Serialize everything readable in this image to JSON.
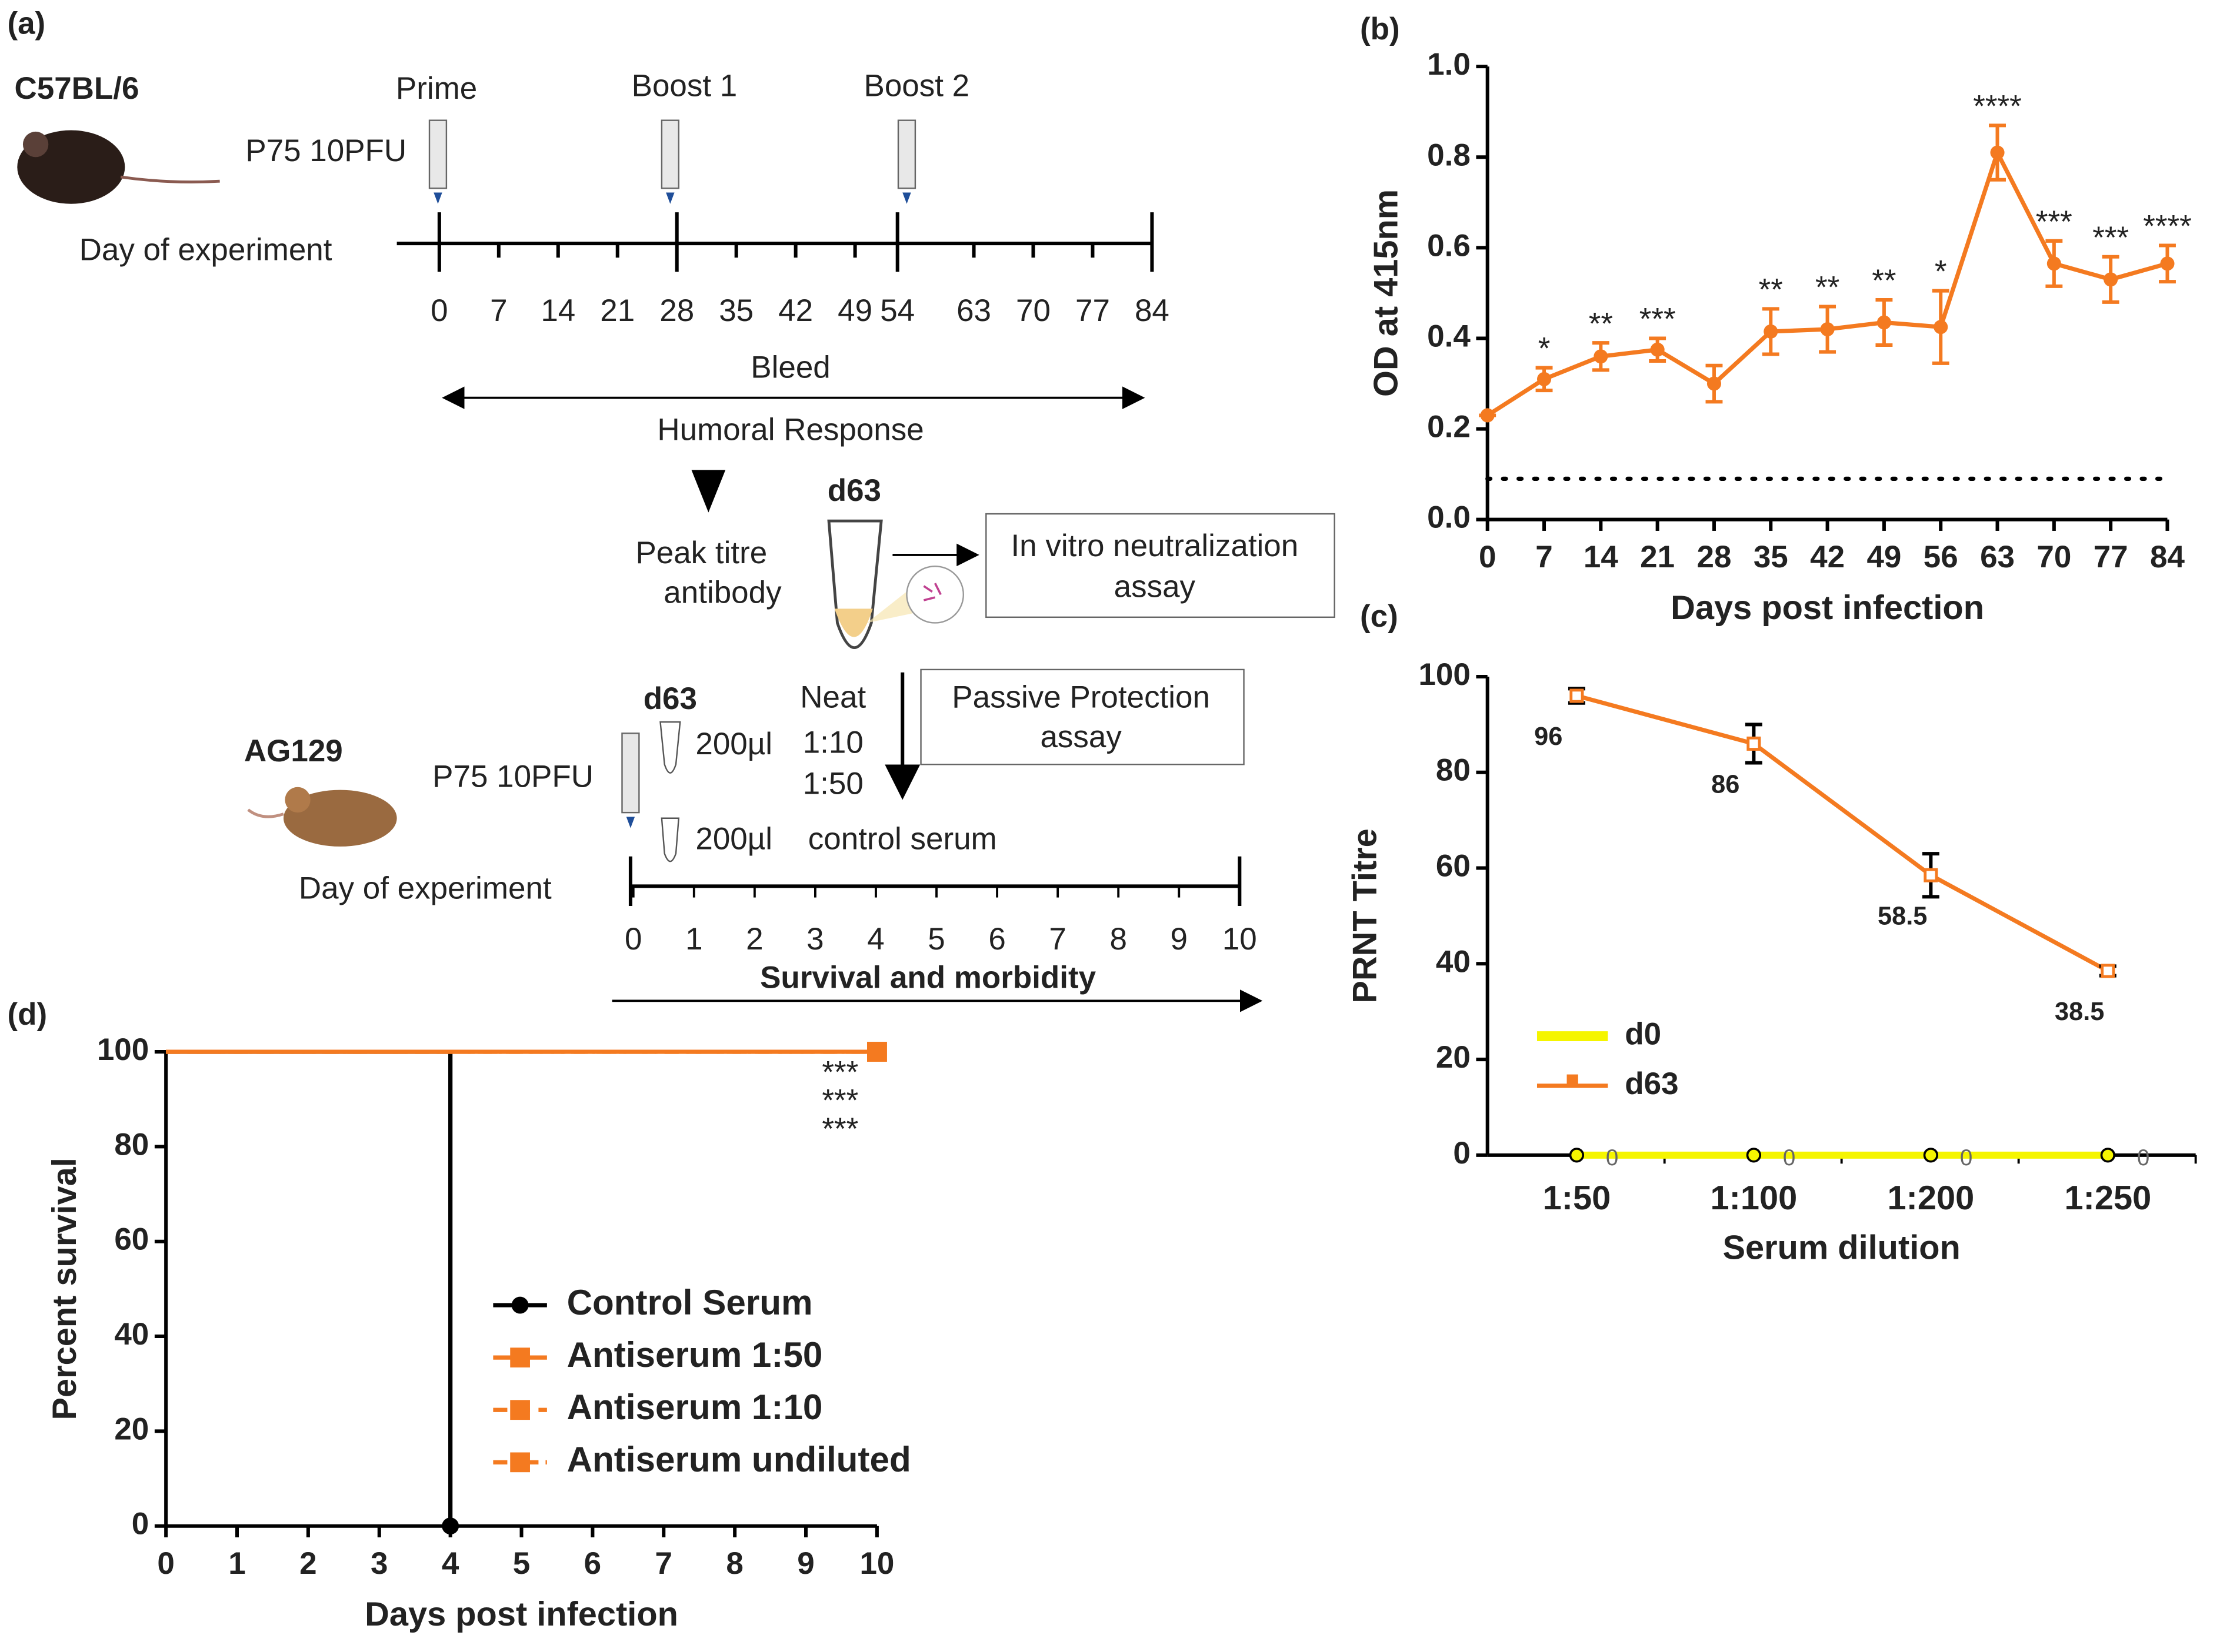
{
  "diagram": {
    "panel": "(a)",
    "strain1": "C57BL/6",
    "dose_labels": [
      "Prime",
      "Boost 1",
      "Boost 2"
    ],
    "dose1": "P75 10PFU",
    "day_label1": "Day of experiment",
    "timeline1_ticks": [
      0,
      7,
      14,
      21,
      28,
      35,
      42,
      49,
      54,
      63,
      70,
      77,
      84
    ],
    "bleed": "Bleed",
    "humoral": "Humoral Response",
    "tube_label1": "d63",
    "peak": [
      "Peak titre",
      "antibody"
    ],
    "invitro": [
      "In vitro neutralization",
      "assay"
    ],
    "tube_label2": "d63",
    "volume1": "200µl",
    "dilutions": [
      "Neat",
      "1:10",
      "1:50"
    ],
    "passive": [
      "Passive Protection",
      "assay"
    ],
    "strain2": "AG129",
    "dose2": "P75 10PFU",
    "volume2": "200µl",
    "control": "control serum",
    "day_label2": "Day of experiment",
    "timeline2_ticks": [
      0,
      1,
      2,
      3,
      4,
      5,
      6,
      7,
      8,
      9,
      10
    ],
    "survival": "Survival and morbidity"
  },
  "chart_data": [
    {
      "type": "line",
      "panel": "(b)",
      "xlabel": "Days post infection",
      "ylabel": "OD at 415nm",
      "x": [
        0,
        7,
        14,
        21,
        28,
        35,
        42,
        49,
        56,
        63,
        70,
        77,
        84
      ],
      "series": [
        {
          "name": null,
          "color": "#f47a20",
          "values": [
            0.23,
            0.31,
            0.36,
            0.375,
            0.3,
            0.415,
            0.42,
            0.435,
            0.425,
            0.81,
            0.565,
            0.53,
            0.565
          ],
          "errors": [
            0,
            0.025,
            0.03,
            0.025,
            0.04,
            0.05,
            0.05,
            0.05,
            0.08,
            0.06,
            0.05,
            0.05,
            0.04
          ],
          "annotations": [
            null,
            "*",
            "**",
            "***",
            null,
            "**",
            "**",
            "**",
            "*",
            "****",
            "***",
            "***",
            "****"
          ]
        }
      ],
      "reference_line": 0.09,
      "xlim": [
        0,
        84
      ],
      "xticks": [
        0,
        7,
        14,
        21,
        28,
        35,
        42,
        49,
        56,
        63,
        70,
        77,
        84
      ],
      "ylim": [
        0,
        1
      ],
      "yticks": [
        {
          "value": 0,
          "label": "0.0"
        },
        0.2,
        0.4,
        0.6,
        0.8,
        {
          "value": 1,
          "label": "1.0"
        }
      ]
    },
    {
      "type": "line",
      "panel": "(c)",
      "xlabel": "Serum dilution",
      "ylabel": "PRNT Titre",
      "categories": [
        "1:50",
        "1:100",
        "1:200",
        "1:250"
      ],
      "series": [
        {
          "name": "d0",
          "color": "#f5f500",
          "marker": "circle",
          "values": [
            0,
            0,
            0,
            0
          ]
        },
        {
          "name": "d63",
          "color": "#f47a20",
          "marker": "square",
          "values": [
            96,
            86,
            58.5,
            38.5
          ],
          "errors": [
            1.5,
            4,
            4.5,
            1
          ]
        }
      ],
      "legend": "lower left",
      "ylim": [
        0,
        100
      ],
      "yticks": [
        0,
        20,
        40,
        60,
        80,
        100
      ]
    },
    {
      "type": "step",
      "panel": "(d)",
      "xlabel": "Days post infection",
      "ylabel": "Percent survival",
      "series": [
        {
          "name": "Control Serum",
          "color": "#000000",
          "marker": "circle",
          "dash": "solid",
          "x": [
            0,
            4,
            4
          ],
          "values": [
            100,
            100,
            0
          ]
        },
        {
          "name": "Antiserum 1:50",
          "color": "#f47a20",
          "marker": "square",
          "dash": "solid",
          "x": [
            0,
            10
          ],
          "values": [
            100,
            100
          ]
        },
        {
          "name": "Antiserum 1:10",
          "color": "#f47a20",
          "marker": "square",
          "dash": "dashed",
          "x": [
            0,
            10
          ],
          "values": [
            100,
            100
          ]
        },
        {
          "name": "Antiserum undiluted",
          "color": "#f47a20",
          "marker": "square",
          "dash": "dashdot",
          "x": [
            0,
            10
          ],
          "values": [
            100,
            100
          ]
        }
      ],
      "annotations": [
        "***",
        "***",
        "***"
      ],
      "legend": "center",
      "xlim": [
        0,
        10
      ],
      "xticks": [
        0,
        1,
        2,
        3,
        4,
        5,
        6,
        7,
        8,
        9,
        10
      ],
      "ylim": [
        0,
        100
      ],
      "yticks": [
        0,
        20,
        40,
        60,
        80,
        100
      ]
    }
  ]
}
